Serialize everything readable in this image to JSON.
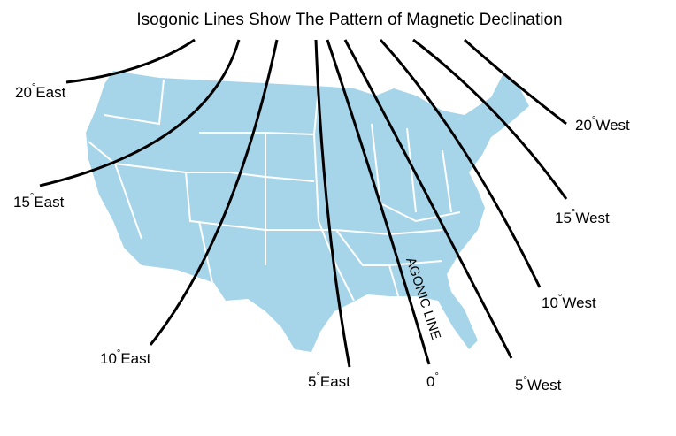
{
  "title": "Isogonic Lines Show The Pattern of Magnetic Declination",
  "colors": {
    "land": "#a6d5ea",
    "lines": "#000000",
    "borders": "#ffffff"
  },
  "isogonic_lines": [
    {
      "value": "20",
      "dir": "East"
    },
    {
      "value": "15",
      "dir": "East"
    },
    {
      "value": "10",
      "dir": "East"
    },
    {
      "value": "5",
      "dir": "East"
    },
    {
      "value": "0",
      "dir": ""
    },
    {
      "value": "5",
      "dir": "West"
    },
    {
      "value": "10",
      "dir": "West"
    },
    {
      "value": "15",
      "dir": "West"
    },
    {
      "value": "20",
      "dir": "West"
    }
  ],
  "degree_symbol": "°",
  "agonic_label": "AGONIC LINE"
}
